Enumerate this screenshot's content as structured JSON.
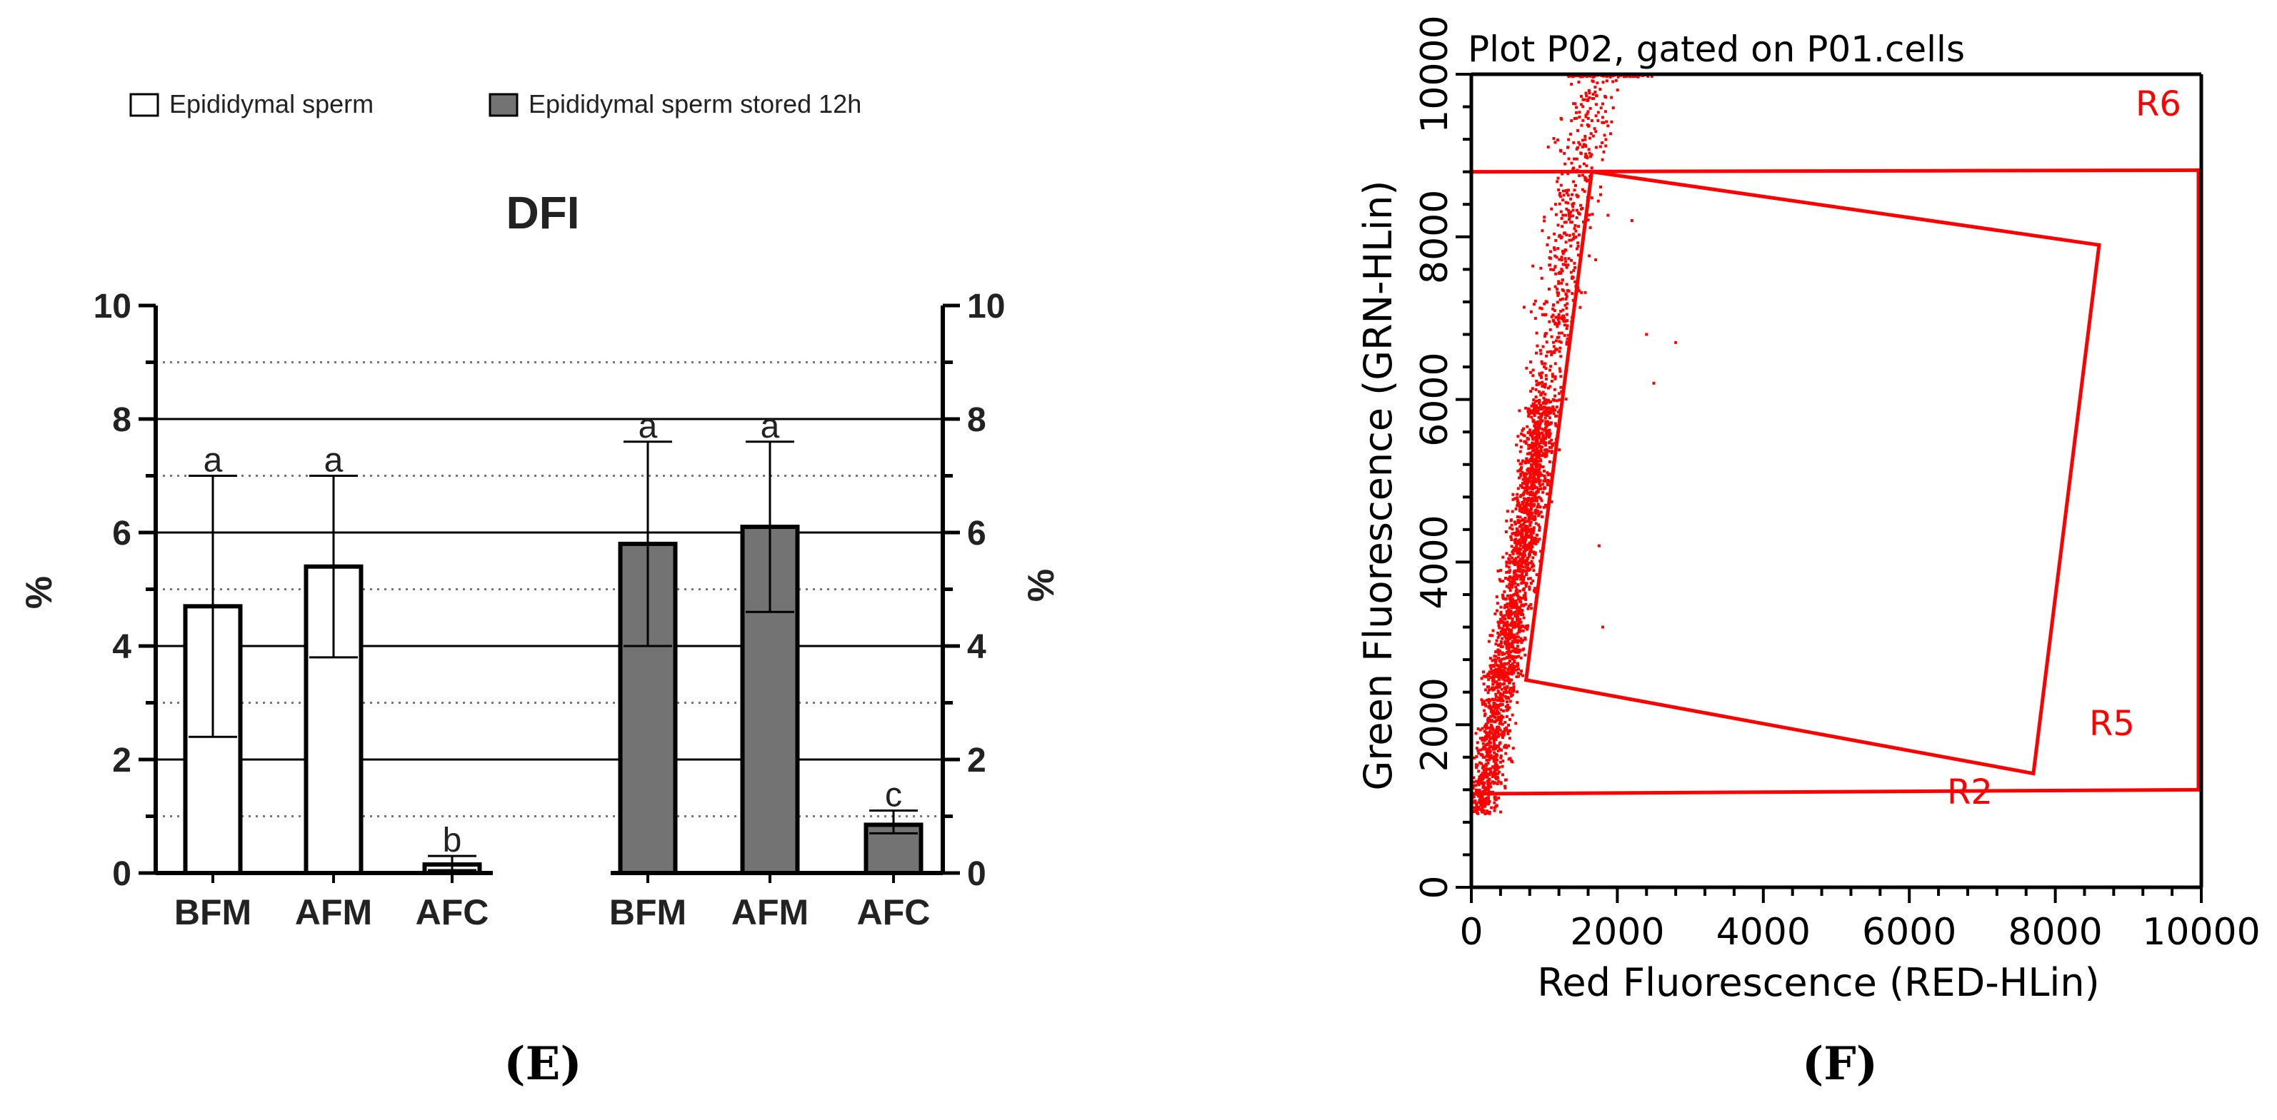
{
  "panels": {
    "left_caption": "(E)",
    "right_caption": "(F)"
  },
  "chart_data": [
    {
      "type": "bar",
      "title": "DFI",
      "ylabel": "%",
      "ylabel_right": "%",
      "ylim": [
        0,
        10
      ],
      "yticks": [
        "0",
        "2",
        "4",
        "6",
        "8",
        "10"
      ],
      "legend": [
        {
          "label": "Epididymal sperm",
          "color": "#ffffff"
        },
        {
          "label": "Epididymal sperm stored 12h",
          "color": "#737373"
        }
      ],
      "bars": [
        {
          "group": "Epididymal sperm",
          "category": "BFM",
          "value": 4.7,
          "err_low": 2.4,
          "err_high": 7.0,
          "letter": "a",
          "color": "#ffffff"
        },
        {
          "group": "Epididymal sperm",
          "category": "AFM",
          "value": 5.4,
          "err_low": 3.8,
          "err_high": 7.0,
          "letter": "a",
          "color": "#ffffff"
        },
        {
          "group": "Epididymal sperm",
          "category": "AFC",
          "value": 0.15,
          "err_low": 0.05,
          "err_high": 0.3,
          "letter": "b",
          "color": "#ffffff"
        },
        {
          "group": "Epididymal sperm stored 12h",
          "category": "BFM",
          "value": 5.8,
          "err_low": 4.0,
          "err_high": 7.6,
          "letter": "a",
          "color": "#737373"
        },
        {
          "group": "Epididymal sperm stored 12h",
          "category": "AFM",
          "value": 6.1,
          "err_low": 4.6,
          "err_high": 7.6,
          "letter": "a",
          "color": "#737373"
        },
        {
          "group": "Epididymal sperm stored 12h",
          "category": "AFC",
          "value": 0.85,
          "err_low": 0.7,
          "err_high": 1.1,
          "letter": "c",
          "color": "#737373"
        }
      ]
    },
    {
      "type": "scatter",
      "title": "Plot P02, gated on P01.cells",
      "xlabel": "Red Fluorescence (RED-HLin)",
      "ylabel": "Green Fluorescence (GRN-HLin)",
      "xlim": [
        0,
        10000
      ],
      "ylim": [
        0,
        10000
      ],
      "xticks": [
        "0",
        "2000",
        "4000",
        "6000",
        "8000",
        "10000"
      ],
      "yticks": [
        "0",
        "2000",
        "4000",
        "6000",
        "8000",
        "10000"
      ],
      "point_color": "#ff0000",
      "gates": [
        {
          "name": "R6",
          "label": "R6"
        },
        {
          "name": "R5",
          "label": "R5"
        },
        {
          "name": "R2",
          "label": "R2"
        }
      ],
      "r2_gate_y": [
        1150,
        1200
      ],
      "r6_gate_y": [
        8800,
        8820
      ],
      "r5_polygon": [
        [
          1650,
          8800
        ],
        [
          8600,
          7900
        ],
        [
          7700,
          1400
        ],
        [
          750,
          2550
        ]
      ],
      "population": {
        "description_values": "dense diagonal cluster",
        "x_range": [
          0,
          1900
        ],
        "y_range": [
          750,
          10000
        ],
        "trend": [
          [
            150,
            1000
          ],
          [
            600,
            3500
          ],
          [
            1000,
            6000
          ],
          [
            1300,
            8000
          ],
          [
            1700,
            10000
          ]
        ]
      },
      "outliers": [
        [
          2200,
          8200
        ],
        [
          2400,
          6800
        ],
        [
          2500,
          6200
        ],
        [
          2800,
          6700
        ],
        [
          1750,
          4200
        ],
        [
          1800,
          3200
        ]
      ]
    }
  ]
}
